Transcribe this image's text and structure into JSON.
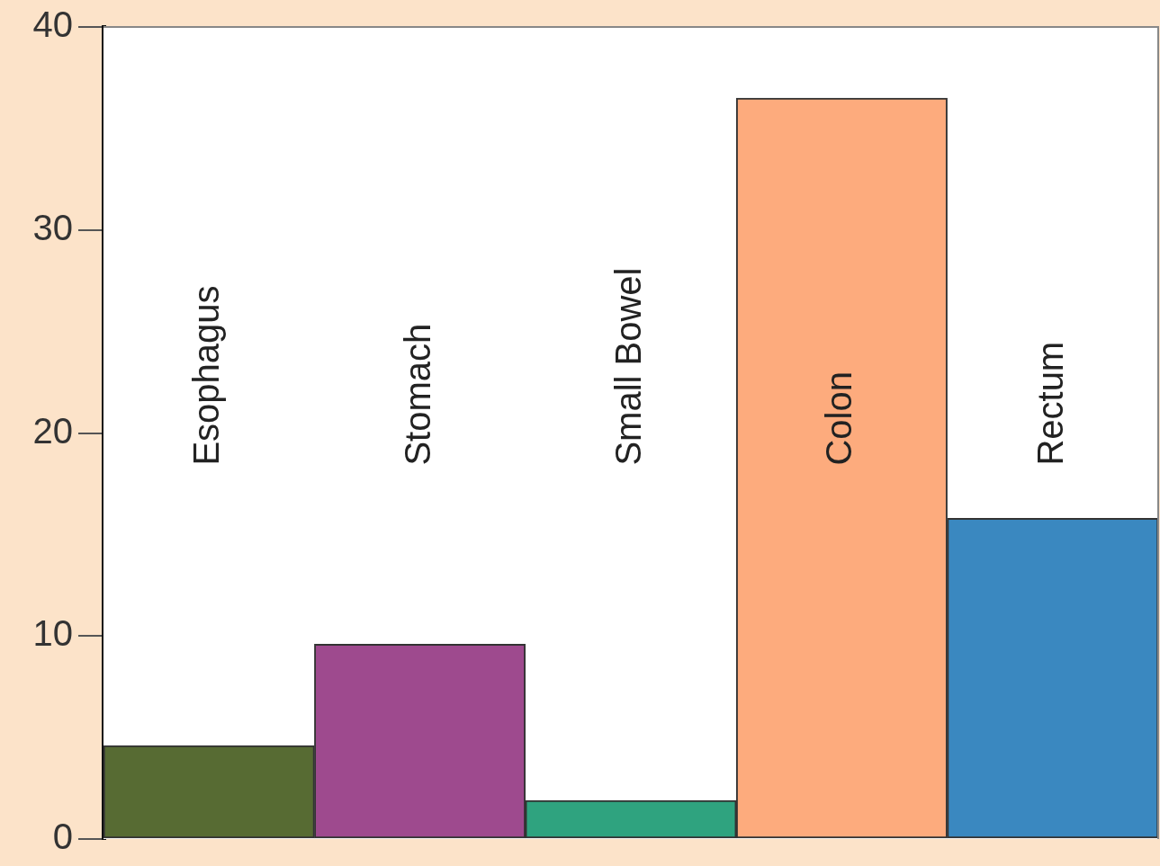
{
  "chart_data": {
    "type": "bar",
    "categories": [
      "Esophagus",
      "Stomach",
      "Small Bowel",
      "Colon",
      "Rectum"
    ],
    "values": [
      4.6,
      9.6,
      1.9,
      36.5,
      15.8
    ],
    "colors": [
      "#576b33",
      "#9e4a8e",
      "#2fa37f",
      "#fdab7d",
      "#3a88c0"
    ],
    "ylim": [
      0,
      40
    ],
    "yticks": [
      0,
      10,
      20,
      30,
      40
    ],
    "grid": false,
    "legend": false
  }
}
